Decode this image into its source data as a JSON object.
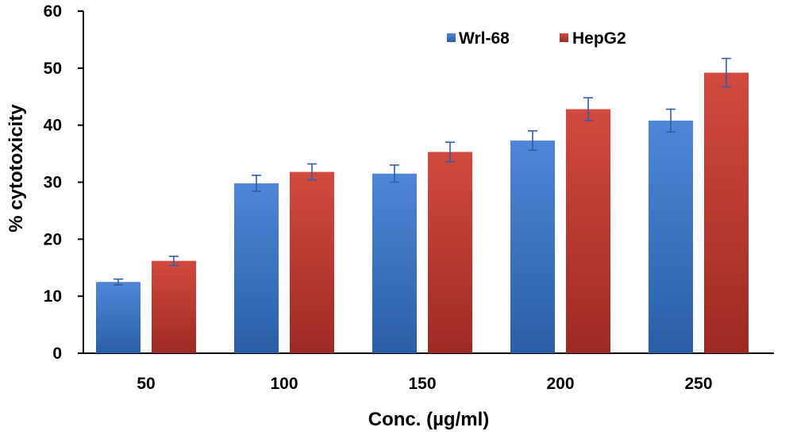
{
  "chart_data": {
    "type": "bar",
    "title": "",
    "xlabel": "Conc. (µg/ml)",
    "ylabel": "% cytotoxicity",
    "categories": [
      "50",
      "100",
      "150",
      "200",
      "250"
    ],
    "ylim": [
      0,
      60
    ],
    "yticks": [
      "0",
      "10",
      "20",
      "30",
      "40",
      "50",
      "60"
    ],
    "grid": false,
    "legend_position": "top-right",
    "series": [
      {
        "name": "Wrl-68",
        "color": "#3a72c4",
        "values": [
          12.5,
          29.8,
          31.5,
          37.3,
          40.8
        ],
        "errors": [
          0.5,
          1.4,
          1.5,
          1.7,
          2.0
        ]
      },
      {
        "name": "HepG2",
        "color": "#c0392f",
        "values": [
          16.2,
          31.8,
          35.3,
          42.8,
          49.2
        ],
        "errors": [
          0.8,
          1.4,
          1.7,
          2.0,
          2.5
        ]
      }
    ]
  }
}
